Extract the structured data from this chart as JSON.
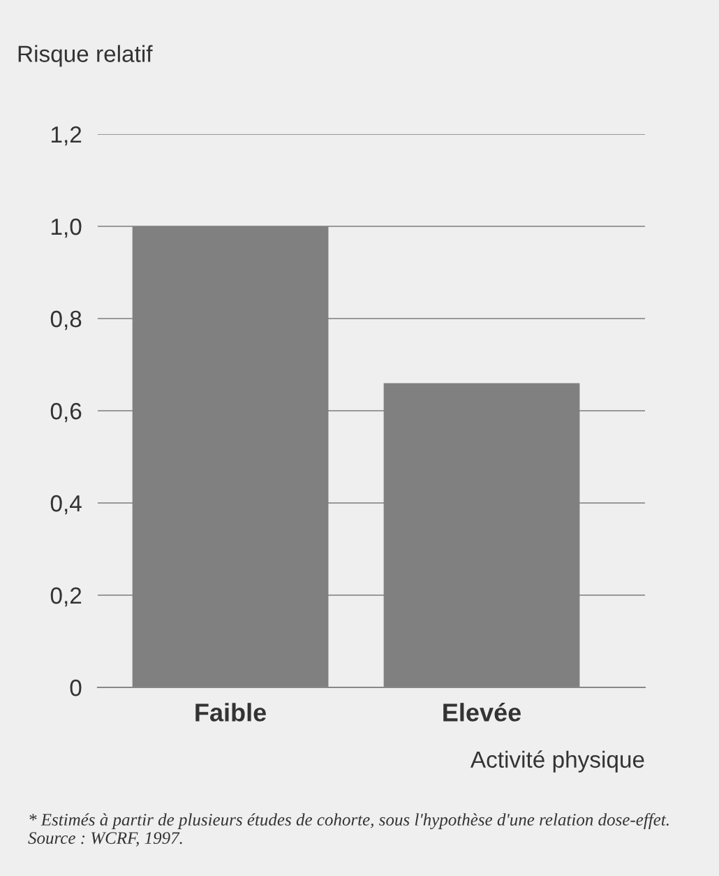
{
  "chart_data": {
    "type": "bar",
    "ylabel": "Risque relatif",
    "xlabel": "Activité physique",
    "categories": [
      "Faible",
      "Elevée"
    ],
    "values": [
      1.0,
      0.66
    ],
    "color": "#808080",
    "ylim": [
      0,
      1.2
    ],
    "yticks": [
      0,
      {
        "value": 0.2,
        "label": "0,2"
      },
      {
        "value": 0.4,
        "label": "0,4"
      },
      {
        "value": 0.6,
        "label": "0,6"
      },
      {
        "value": 0.8,
        "label": "0,8"
      },
      {
        "value": 1.0,
        "label": "1,0"
      },
      {
        "value": 1.2,
        "label": "1,2"
      }
    ],
    "grid": "y",
    "annotations": [
      "* Estimés à partir de plusieurs études de cohorte, sous l'hypothèse d'une relation dose-effet. Source : WCRF, 1997."
    ]
  }
}
